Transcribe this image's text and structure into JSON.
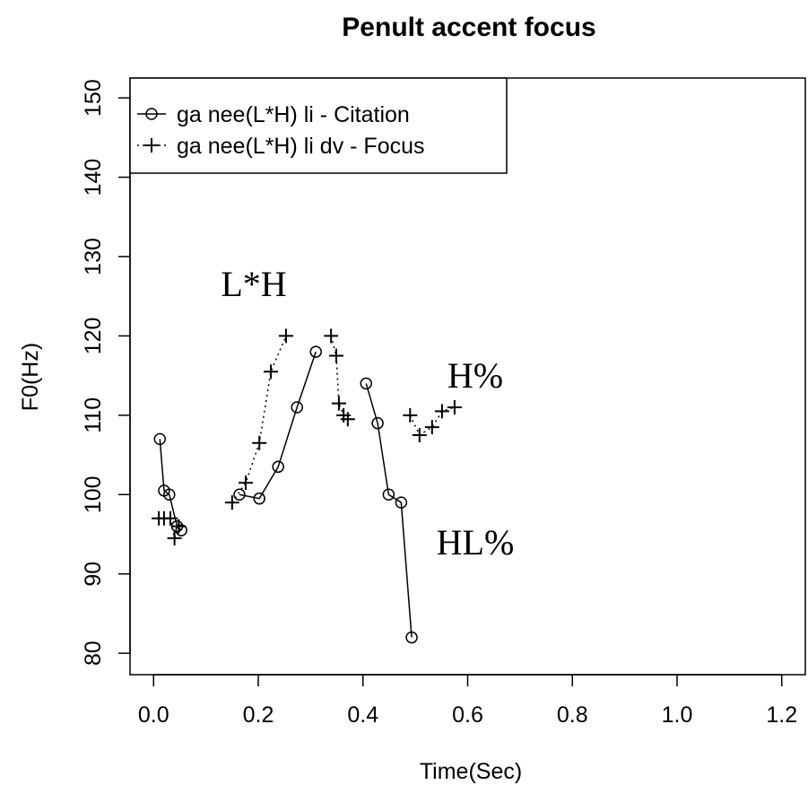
{
  "chart_data": {
    "type": "line",
    "title": "Penult accent focus",
    "x_label": "Time(Sec)",
    "y_label": "F0(Hz)",
    "xlim": [
      -0.045,
      1.245
    ],
    "ylim": [
      77.3,
      152.5
    ],
    "xticks": [
      {
        "value": 0,
        "label": "0.0"
      },
      0.2,
      0.4,
      0.6,
      0.8,
      {
        "value": 1,
        "label": "1.0"
      },
      1.2
    ],
    "yticks": [
      80,
      90,
      100,
      110,
      120,
      130,
      140,
      150
    ],
    "legend": "top-left",
    "series": [
      {
        "name": "ga nee(L*H) li - Citation",
        "color": "#000000",
        "marker": "circle",
        "linestyle": "solid",
        "x": [
          0.012,
          0.02,
          0.03,
          0.045,
          0.053,
          null,
          0.164,
          0.202,
          0.238,
          0.274,
          0.31,
          null,
          0.406,
          0.428,
          0.449,
          0.473,
          0.493
        ],
        "values": [
          107,
          100.5,
          100,
          96,
          95.5,
          null,
          100,
          99.5,
          103.5,
          111,
          118,
          null,
          114,
          109,
          100,
          99,
          82
        ]
      },
      {
        "name": "ga nee(L*H) li dv - Focus",
        "color": "#000000",
        "marker": "plus",
        "linestyle": "dotted",
        "x": [
          0.01,
          0.02,
          0.032,
          0.04,
          0.048,
          null,
          0.15,
          0.176,
          0.202,
          0.224,
          0.253,
          null,
          0.339,
          0.349,
          0.354,
          0.363,
          0.371,
          null,
          0.49,
          0.508,
          0.532,
          0.551,
          0.575
        ],
        "values": [
          97,
          97,
          97,
          94.5,
          96,
          null,
          99,
          101.5,
          106.5,
          115.5,
          120,
          null,
          120,
          117.5,
          111.5,
          110,
          109.5,
          null,
          110,
          107.5,
          108.5,
          110.5,
          111
        ]
      }
    ],
    "annotations": [
      "L*H",
      "H%",
      "HL%"
    ]
  }
}
